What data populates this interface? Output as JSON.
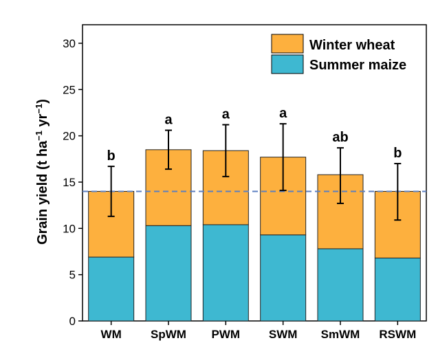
{
  "chart_data": {
    "type": "bar",
    "stacked": true,
    "categories": [
      "WM",
      "SpWM",
      "PWM",
      "SWM",
      "SmWM",
      "RSWM"
    ],
    "series": [
      {
        "name": "Summer maize",
        "values": [
          6.9,
          10.3,
          10.4,
          9.3,
          7.8,
          6.8
        ],
        "color": "#3EB8D1"
      },
      {
        "name": "Winter wheat",
        "values": [
          7.1,
          8.2,
          8.0,
          8.4,
          8.0,
          7.2
        ],
        "color": "#FDB03E"
      }
    ],
    "totals": [
      14.0,
      18.5,
      18.4,
      17.7,
      15.8,
      14.0
    ],
    "error_bars": {
      "lower": [
        11.3,
        16.4,
        15.6,
        14.1,
        12.7,
        10.9
      ],
      "upper": [
        16.7,
        20.6,
        21.2,
        21.3,
        18.7,
        17.0
      ]
    },
    "significance_letters": [
      "b",
      "a",
      "a",
      "a",
      "ab",
      "b"
    ],
    "reference_line": 14.0,
    "ylabel_parts": [
      "Grain yield (t ha",
      "−1",
      " yr",
      "−1",
      ")"
    ],
    "yticks": [
      0,
      5,
      10,
      15,
      20,
      25,
      30
    ],
    "ylim": [
      0,
      32
    ],
    "legend": [
      "Winter wheat",
      "Summer maize"
    ],
    "legend_position": "top-right",
    "grid": false
  }
}
